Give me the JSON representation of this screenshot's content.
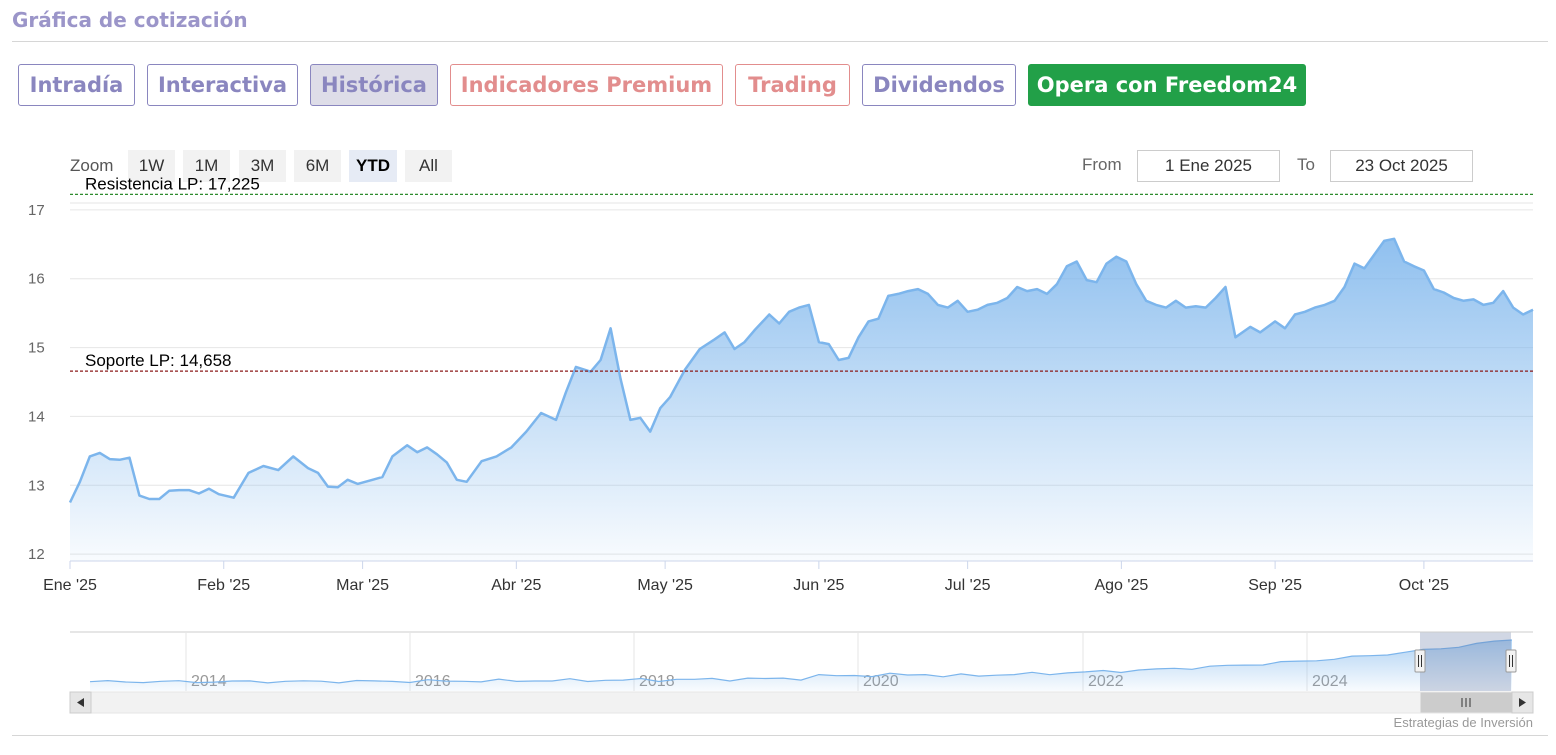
{
  "header": {
    "title": "Gráfica de cotización"
  },
  "tabs": [
    {
      "label": "Intradía",
      "style": "purple"
    },
    {
      "label": "Interactiva",
      "style": "purple"
    },
    {
      "label": "Histórica",
      "style": "active"
    },
    {
      "label": "Indicadores Premium",
      "style": "red"
    },
    {
      "label": "Trading",
      "style": "red"
    },
    {
      "label": "Dividendos",
      "style": "purple"
    },
    {
      "label": "Opera con Freedom24",
      "style": "green"
    }
  ],
  "zoom": {
    "label": "Zoom",
    "buttons": [
      "1W",
      "1M",
      "3M",
      "6M",
      "YTD",
      "All"
    ],
    "selected": "YTD"
  },
  "range": {
    "from_label": "From",
    "from_value": "1 Ene 2025",
    "to_label": "To",
    "to_value": "23 Oct 2025"
  },
  "colors": {
    "line": "#7cb5ec",
    "resistance": "#2e8b2e",
    "support": "#8b1a1a",
    "accent_green": "#22a048",
    "tab_purple": "#8a86bf",
    "tab_red": "#e28d8d"
  },
  "chart_data": {
    "type": "area",
    "title": "",
    "xlabel": "",
    "ylabel": "",
    "ylim": [
      11.9,
      17.1
    ],
    "yticks": [
      12,
      13,
      14,
      15,
      16,
      17
    ],
    "xlim": [
      "2025-01-01",
      "2025-10-23"
    ],
    "xticks": [
      {
        "date": "2025-01-01",
        "label": "Ene '25"
      },
      {
        "date": "2025-02-01",
        "label": "Feb '25"
      },
      {
        "date": "2025-03-01",
        "label": "Mar '25"
      },
      {
        "date": "2025-04-01",
        "label": "Abr '25"
      },
      {
        "date": "2025-05-01",
        "label": "May '25"
      },
      {
        "date": "2025-06-01",
        "label": "Jun '25"
      },
      {
        "date": "2025-07-01",
        "label": "Jul '25"
      },
      {
        "date": "2025-08-01",
        "label": "Ago '25"
      },
      {
        "date": "2025-09-01",
        "label": "Sep '25"
      },
      {
        "date": "2025-10-01",
        "label": "Oct '25"
      }
    ],
    "grid": true,
    "series": [
      {
        "points": [
          [
            "2025-01-01",
            12.75
          ],
          [
            "2025-01-03",
            13.05
          ],
          [
            "2025-01-05",
            13.42
          ],
          [
            "2025-01-07",
            13.47
          ],
          [
            "2025-01-09",
            13.38
          ],
          [
            "2025-01-11",
            13.37
          ],
          [
            "2025-01-13",
            13.4
          ],
          [
            "2025-01-15",
            12.85
          ],
          [
            "2025-01-17",
            12.8
          ],
          [
            "2025-01-19",
            12.8
          ],
          [
            "2025-01-21",
            12.92
          ],
          [
            "2025-01-23",
            12.93
          ],
          [
            "2025-01-25",
            12.93
          ],
          [
            "2025-01-27",
            12.88
          ],
          [
            "2025-01-29",
            12.95
          ],
          [
            "2025-01-31",
            12.87
          ],
          [
            "2025-02-03",
            12.82
          ],
          [
            "2025-02-06",
            13.18
          ],
          [
            "2025-02-09",
            13.28
          ],
          [
            "2025-02-12",
            13.22
          ],
          [
            "2025-02-15",
            13.42
          ],
          [
            "2025-02-18",
            13.25
          ],
          [
            "2025-02-20",
            13.18
          ],
          [
            "2025-02-22",
            12.98
          ],
          [
            "2025-02-24",
            12.97
          ],
          [
            "2025-02-26",
            13.08
          ],
          [
            "2025-02-28",
            13.02
          ],
          [
            "2025-03-03",
            13.08
          ],
          [
            "2025-03-05",
            13.12
          ],
          [
            "2025-03-07",
            13.42
          ],
          [
            "2025-03-10",
            13.58
          ],
          [
            "2025-03-12",
            13.48
          ],
          [
            "2025-03-14",
            13.55
          ],
          [
            "2025-03-16",
            13.45
          ],
          [
            "2025-03-18",
            13.33
          ],
          [
            "2025-03-20",
            13.08
          ],
          [
            "2025-03-22",
            13.05
          ],
          [
            "2025-03-25",
            13.35
          ],
          [
            "2025-03-28",
            13.42
          ],
          [
            "2025-03-31",
            13.55
          ],
          [
            "2025-04-03",
            13.78
          ],
          [
            "2025-04-06",
            14.05
          ],
          [
            "2025-04-09",
            13.95
          ],
          [
            "2025-04-11",
            14.35
          ],
          [
            "2025-04-13",
            14.72
          ],
          [
            "2025-04-16",
            14.65
          ],
          [
            "2025-04-18",
            14.82
          ],
          [
            "2025-04-20",
            15.28
          ],
          [
            "2025-04-22",
            14.55
          ],
          [
            "2025-04-24",
            13.95
          ],
          [
            "2025-04-26",
            13.98
          ],
          [
            "2025-04-28",
            13.78
          ],
          [
            "2025-04-30",
            14.12
          ],
          [
            "2025-05-02",
            14.28
          ],
          [
            "2025-05-05",
            14.68
          ],
          [
            "2025-05-08",
            14.98
          ],
          [
            "2025-05-11",
            15.12
          ],
          [
            "2025-05-13",
            15.22
          ],
          [
            "2025-05-15",
            14.98
          ],
          [
            "2025-05-17",
            15.08
          ],
          [
            "2025-05-19",
            15.25
          ],
          [
            "2025-05-22",
            15.48
          ],
          [
            "2025-05-24",
            15.35
          ],
          [
            "2025-05-26",
            15.52
          ],
          [
            "2025-05-28",
            15.58
          ],
          [
            "2025-05-30",
            15.62
          ],
          [
            "2025-06-01",
            15.08
          ],
          [
            "2025-06-03",
            15.05
          ],
          [
            "2025-06-05",
            14.82
          ],
          [
            "2025-06-07",
            14.85
          ],
          [
            "2025-06-09",
            15.15
          ],
          [
            "2025-06-11",
            15.38
          ],
          [
            "2025-06-13",
            15.42
          ],
          [
            "2025-06-15",
            15.75
          ],
          [
            "2025-06-17",
            15.78
          ],
          [
            "2025-06-19",
            15.82
          ],
          [
            "2025-06-21",
            15.85
          ],
          [
            "2025-06-23",
            15.78
          ],
          [
            "2025-06-25",
            15.62
          ],
          [
            "2025-06-27",
            15.58
          ],
          [
            "2025-06-29",
            15.68
          ],
          [
            "2025-07-01",
            15.52
          ],
          [
            "2025-07-03",
            15.55
          ],
          [
            "2025-07-05",
            15.62
          ],
          [
            "2025-07-07",
            15.65
          ],
          [
            "2025-07-09",
            15.72
          ],
          [
            "2025-07-11",
            15.88
          ],
          [
            "2025-07-13",
            15.82
          ],
          [
            "2025-07-15",
            15.85
          ],
          [
            "2025-07-17",
            15.78
          ],
          [
            "2025-07-19",
            15.92
          ],
          [
            "2025-07-21",
            16.18
          ],
          [
            "2025-07-23",
            16.25
          ],
          [
            "2025-07-25",
            15.98
          ],
          [
            "2025-07-27",
            15.95
          ],
          [
            "2025-07-29",
            16.22
          ],
          [
            "2025-07-31",
            16.32
          ],
          [
            "2025-08-02",
            16.25
          ],
          [
            "2025-08-04",
            15.92
          ],
          [
            "2025-08-06",
            15.68
          ],
          [
            "2025-08-08",
            15.62
          ],
          [
            "2025-08-10",
            15.58
          ],
          [
            "2025-08-12",
            15.68
          ],
          [
            "2025-08-14",
            15.58
          ],
          [
            "2025-08-16",
            15.6
          ],
          [
            "2025-08-18",
            15.58
          ],
          [
            "2025-08-20",
            15.72
          ],
          [
            "2025-08-22",
            15.88
          ],
          [
            "2025-08-24",
            15.15
          ],
          [
            "2025-08-27",
            15.3
          ],
          [
            "2025-08-29",
            15.22
          ],
          [
            "2025-09-01",
            15.38
          ],
          [
            "2025-09-03",
            15.28
          ],
          [
            "2025-09-05",
            15.48
          ],
          [
            "2025-09-07",
            15.52
          ],
          [
            "2025-09-09",
            15.58
          ],
          [
            "2025-09-11",
            15.62
          ],
          [
            "2025-09-13",
            15.68
          ],
          [
            "2025-09-15",
            15.88
          ],
          [
            "2025-09-17",
            16.22
          ],
          [
            "2025-09-19",
            16.15
          ],
          [
            "2025-09-21",
            16.35
          ],
          [
            "2025-09-23",
            16.55
          ],
          [
            "2025-09-25",
            16.58
          ],
          [
            "2025-09-27",
            16.25
          ],
          [
            "2025-09-29",
            16.18
          ],
          [
            "2025-10-01",
            16.12
          ],
          [
            "2025-10-03",
            15.85
          ],
          [
            "2025-10-05",
            15.8
          ],
          [
            "2025-10-07",
            15.72
          ],
          [
            "2025-10-09",
            15.68
          ],
          [
            "2025-10-11",
            15.7
          ],
          [
            "2025-10-13",
            15.62
          ],
          [
            "2025-10-15",
            15.65
          ],
          [
            "2025-10-17",
            15.82
          ],
          [
            "2025-10-19",
            15.58
          ],
          [
            "2025-10-21",
            15.48
          ],
          [
            "2025-10-23",
            15.55
          ]
        ]
      }
    ],
    "annotations": [
      {
        "label": "Resistencia LP: 17,225",
        "value": 17.225,
        "kind": "resistance"
      },
      {
        "label": "Soporte LP: 14,658",
        "value": 14.658,
        "kind": "support"
      }
    ],
    "navigator": {
      "year_labels": [
        "2014",
        "2016",
        "2018",
        "2020",
        "2022",
        "2024"
      ]
    },
    "credit": "Estrategias de Inversión"
  }
}
